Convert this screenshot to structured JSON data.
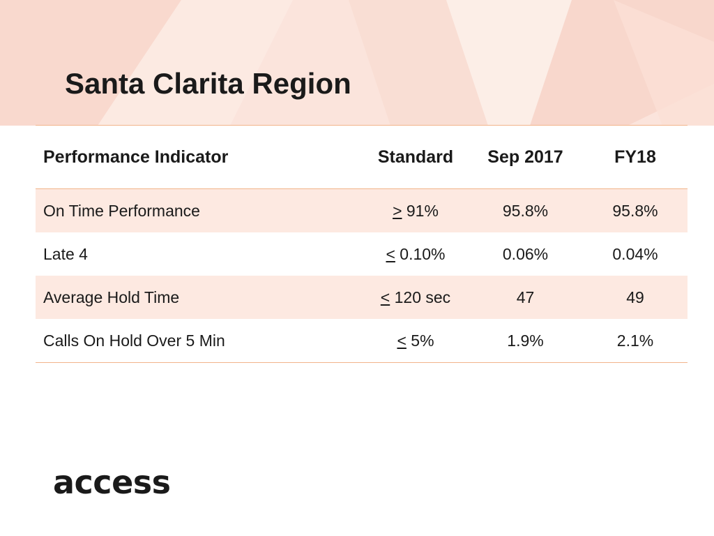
{
  "title": "Santa Clarita Region",
  "table": {
    "headers": {
      "indicator": "Performance Indicator",
      "standard": "Standard",
      "sep": "Sep 2017",
      "fy": "FY18"
    },
    "rows": [
      {
        "indicator": "On Time Performance",
        "symbol": ">",
        "standard": "91%",
        "sep": "95.8%",
        "fy": "95.8%"
      },
      {
        "indicator": "Late 4",
        "symbol": "<",
        "standard": "0.10%",
        "sep": "0.06%",
        "fy": "0.04%"
      },
      {
        "indicator": "Average Hold Time",
        "symbol": "<",
        "standard": "120 sec",
        "sep": "47",
        "fy": "49"
      },
      {
        "indicator": "Calls On Hold Over 5 Min",
        "symbol": "<",
        "standard": "5%",
        "sep": "1.9%",
        "fy": "2.1%"
      }
    ]
  },
  "logo": {
    "text": "access"
  },
  "colors": {
    "header_band": "#fbe4dc",
    "row_shade": "#fde9e1",
    "rule": "#f2b48a"
  }
}
